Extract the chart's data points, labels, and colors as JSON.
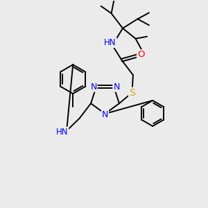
{
  "bg_color": "#ebebeb",
  "atom_colors": {
    "C": "#000000",
    "N": "#0000ee",
    "O": "#ff0000",
    "S": "#ccaa00",
    "H": "#606060"
  },
  "bond_color": "#000000",
  "bond_width": 1.4
}
